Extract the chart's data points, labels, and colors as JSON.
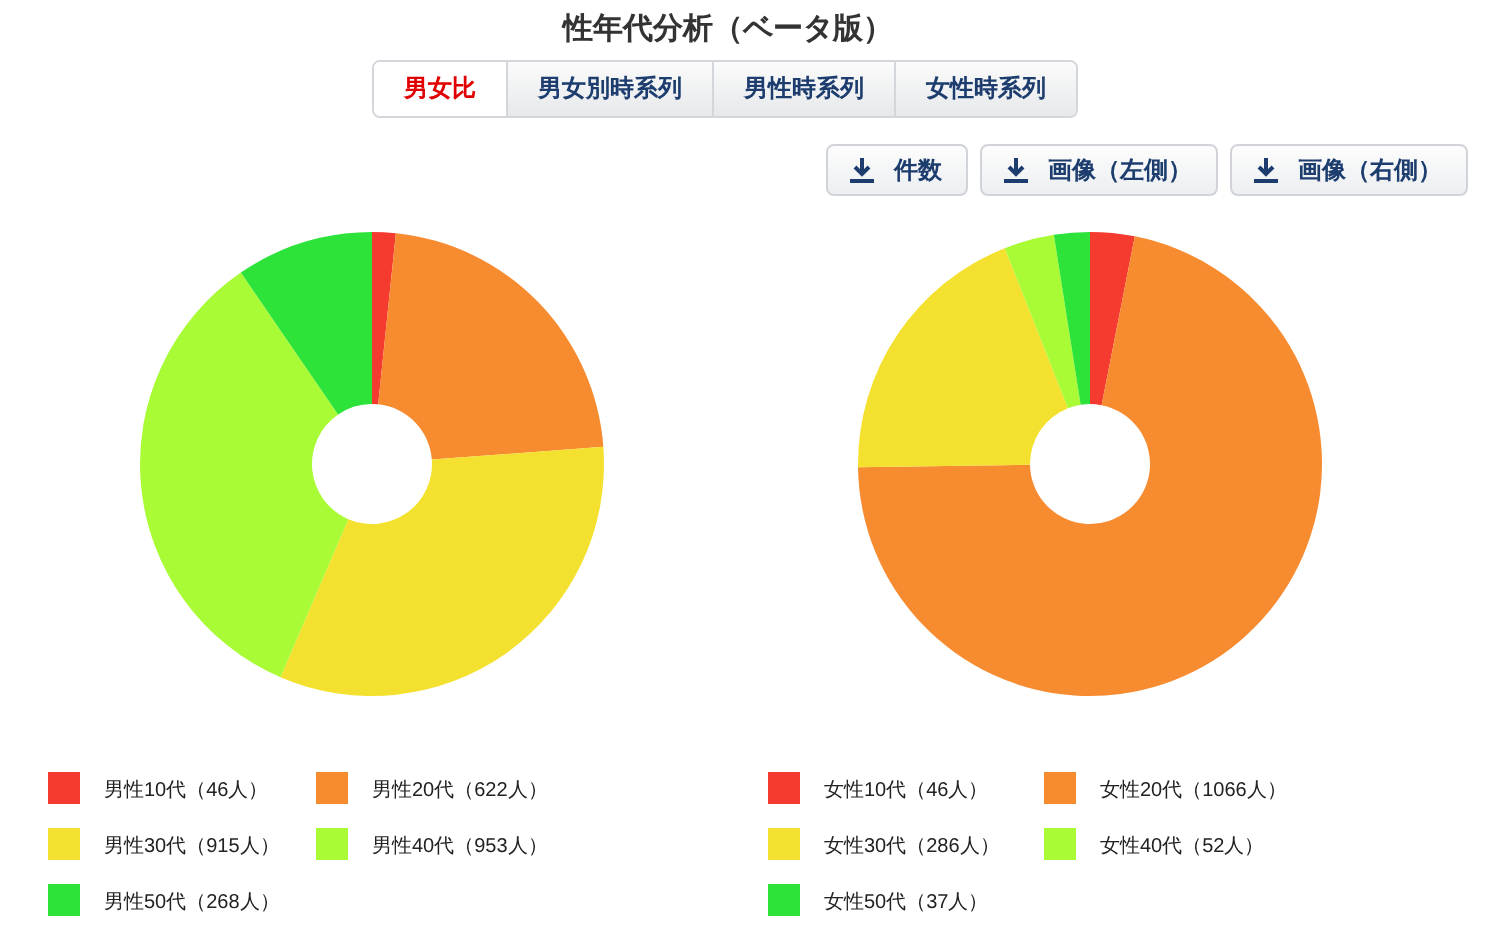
{
  "chart_data": [
    {
      "type": "other",
      "title": "性年代分析（ベータ版）",
      "annotations": [
        "男女比",
        "男女別時系列",
        "男性時系列",
        "女性時系列",
        "件数",
        "画像（左側）",
        "画像（右側）"
      ]
    },
    {
      "type": "donut",
      "categories": [
        "男性10代（46人）",
        "男性20代（622人）",
        "男性30代（915人）",
        "男性40代（953人）",
        "男性50代（268人）"
      ],
      "values": [
        46,
        622,
        915,
        953,
        268
      ],
      "colors": [
        "#f53a2f",
        "#f78b2f",
        "#f4e12f",
        "#a8fb35",
        "#2de33a"
      ],
      "legend": "bottom"
    },
    {
      "type": "donut",
      "categories": [
        "女性10代（46人）",
        "女性20代（1066人）",
        "女性30代（286人）",
        "女性40代（52人）",
        "女性50代（37人）"
      ],
      "values": [
        46,
        1066,
        286,
        52,
        37
      ],
      "colors": [
        "#f53a2f",
        "#f78b2f",
        "#f4e12f",
        "#a8fb35",
        "#2de33a"
      ],
      "legend": "bottom"
    }
  ]
}
